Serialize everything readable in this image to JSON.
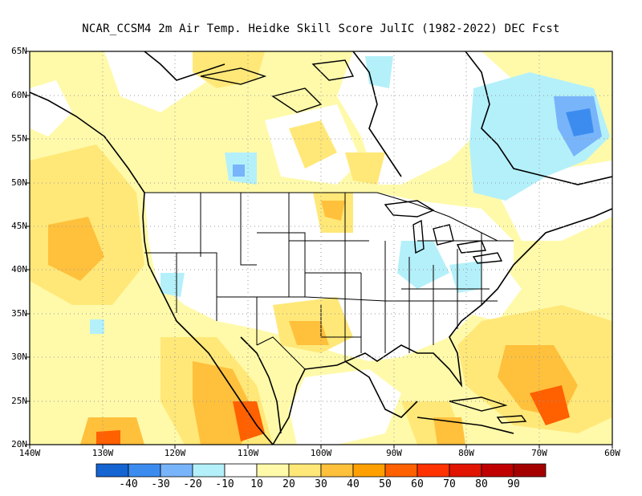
{
  "title": "NCAR_CCSM4  2m Air Temp. Heidke Skill Score JulIC (1982-2022) DEC Fcst",
  "lat_labels": [
    "65N",
    "60N",
    "55N",
    "50N",
    "45N",
    "40N",
    "35N",
    "30N",
    "25N",
    "20N"
  ],
  "lon_labels": [
    "140W",
    "130W",
    "120W",
    "110W",
    "100W",
    "90W",
    "80W",
    "70W",
    "60W"
  ],
  "colorbar": {
    "colors": [
      "#1464d2",
      "#3c8cf0",
      "#78b4fa",
      "#b4f0fa",
      "#ffffff",
      "#fffaaa",
      "#ffe878",
      "#ffc03c",
      "#ffa000",
      "#ff6000",
      "#ff3200",
      "#e11400",
      "#c00000",
      "#a50000"
    ],
    "labels": [
      "-40",
      "-30",
      "-20",
      "-10",
      "10",
      "20",
      "30",
      "40",
      "50",
      "60",
      "70",
      "80",
      "90"
    ]
  },
  "map_colors": {
    "light_yellow": "#fffaaa",
    "yellow": "#ffe878",
    "orange_light": "#ffc03c",
    "orange": "#ffa000",
    "dark_orange": "#ff6000",
    "light_blue": "#b4f0fa",
    "blue": "#78b4fa",
    "dark_blue": "#3c8cf0"
  }
}
